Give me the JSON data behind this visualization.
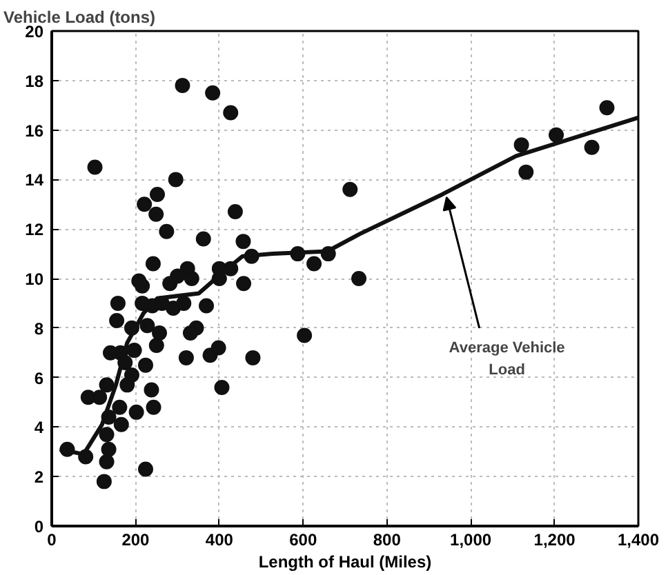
{
  "chart_data": {
    "type": "scatter",
    "xlabel": "Length of Haul (Miles)",
    "ylabel": "Vehicle Load (tons)",
    "xlim": [
      0,
      1400
    ],
    "xticks": [
      0,
      200,
      400,
      600,
      800,
      {
        "value": 1000,
        "label": "1,000"
      },
      {
        "value": 1200,
        "label": "1,200"
      },
      {
        "value": 1400,
        "label": "1,400"
      }
    ],
    "ylim": [
      0,
      20
    ],
    "yticks": [
      0,
      2,
      4,
      6,
      8,
      10,
      12,
      14,
      16,
      18,
      20
    ],
    "grid": true,
    "marker": "circle",
    "series": [
      {
        "color": "#111111",
        "x": [
          312,
          384,
          427,
          103,
          296,
          252,
          221,
          249,
          438,
          274,
          362,
          457,
          242,
          324,
          300,
          400,
          427,
          477,
          334,
          208,
          216,
          282,
          400,
          458,
          158,
          216,
          240,
          263,
          290,
          315,
          369,
          155,
          228,
          191,
          257,
          345,
          331,
          250,
          140,
          164,
          197,
          224,
          175,
          191,
          180,
          131,
          321,
          378,
          398,
          480,
          406,
          603,
          238,
          87,
          114,
          162,
          243,
          202,
          136,
          166,
          131,
          136,
          37,
          81,
          131,
          224,
          125,
          587,
          626,
          660,
          712,
          733,
          1121,
          1132,
          1204,
          1289,
          1325
        ],
        "values": [
          17.8,
          17.5,
          16.7,
          14.5,
          14.0,
          13.4,
          13.0,
          12.6,
          12.7,
          11.9,
          11.6,
          11.5,
          10.6,
          10.4,
          10.1,
          10.4,
          10.4,
          10.9,
          10.0,
          9.9,
          9.7,
          9.8,
          10.0,
          9.8,
          9.0,
          9.0,
          8.9,
          9.0,
          8.8,
          9.0,
          8.9,
          8.3,
          8.1,
          8.0,
          7.8,
          8.0,
          7.8,
          7.3,
          7.0,
          7.0,
          7.1,
          6.5,
          6.6,
          6.1,
          5.7,
          5.7,
          6.8,
          6.9,
          7.2,
          6.8,
          5.6,
          7.7,
          5.5,
          5.2,
          5.2,
          4.8,
          4.8,
          4.6,
          4.4,
          4.1,
          3.7,
          3.1,
          3.1,
          2.8,
          2.6,
          2.3,
          1.8,
          11.0,
          10.6,
          11.0,
          13.6,
          10.0,
          15.4,
          14.3,
          15.8,
          15.3,
          16.9
        ]
      },
      {
        "type": "line",
        "name": "Average Vehicle Load",
        "color": "#111111",
        "marker": "none",
        "line_style": "solid",
        "x": [
          19,
          76,
          120,
          153,
          180,
          219,
          252,
          351,
          405,
          455,
          527,
          658,
          735,
          932,
          1108,
          1400
        ],
        "values": [
          3.1,
          2.9,
          4.1,
          5.7,
          7.4,
          8.6,
          9.2,
          9.4,
          10.2,
          10.9,
          11.0,
          11.1,
          11.8,
          13.4,
          14.95,
          16.5
        ]
      }
    ]
  }
}
